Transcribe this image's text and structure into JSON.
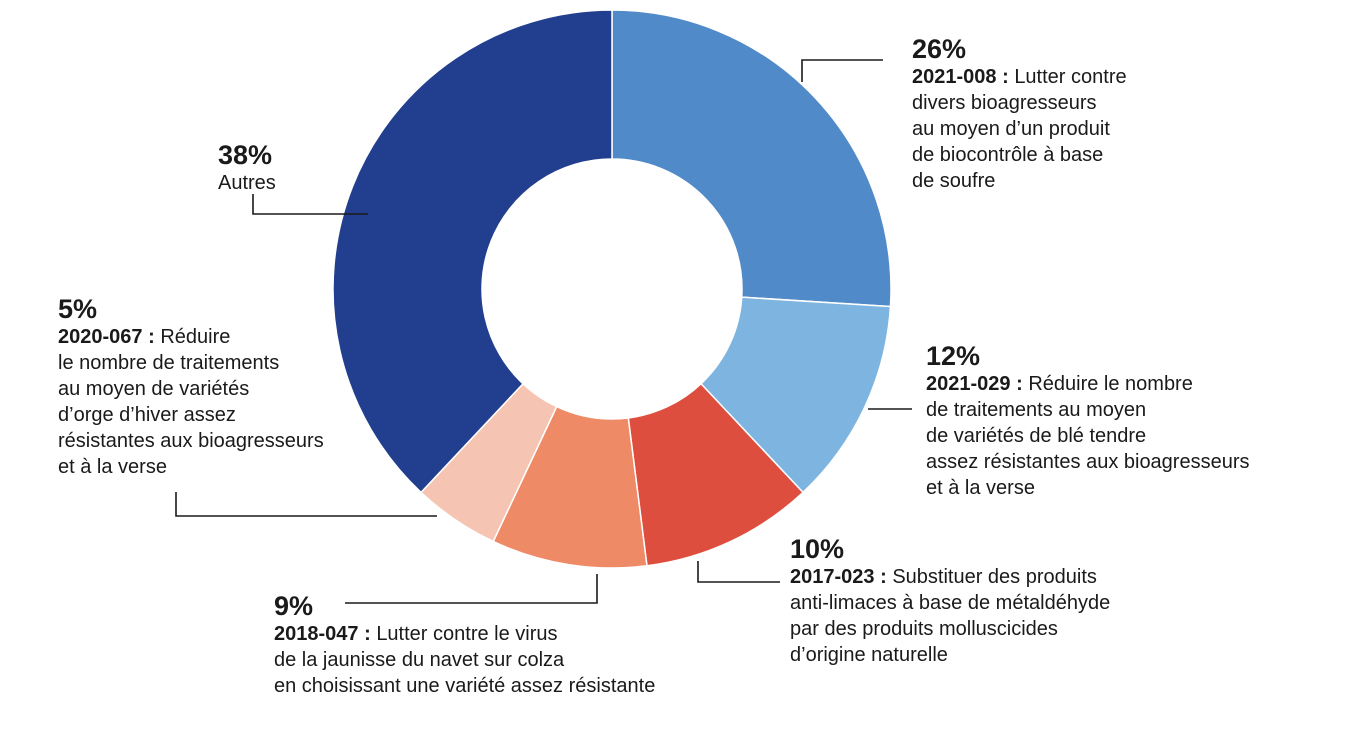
{
  "chart_data": {
    "type": "pie",
    "donut": true,
    "slices": [
      {
        "label": "2021-008",
        "value": 26,
        "color": "#518ac8",
        "pct_text": "26%",
        "code": "2021-008 :",
        "desc_lines": [
          "Lutter contre",
          "divers bioagresseurs",
          "au moyen d’un produit",
          "de biocontrôle à base",
          "de soufre"
        ]
      },
      {
        "label": "2021-029",
        "value": 12,
        "color": "#7db5e0",
        "pct_text": "12%",
        "code": "2021-029 :",
        "desc_lines": [
          "Réduire le nombre",
          "de traitements au moyen",
          "de variétés de blé tendre",
          "assez résistantes aux bioagresseurs",
          "et à la verse"
        ]
      },
      {
        "label": "2017-023",
        "value": 10,
        "color": "#dd4e3e",
        "pct_text": "10%",
        "code": "2017-023 :",
        "desc_lines": [
          "Substituer des produits",
          "anti-limaces à base de métaldéhyde",
          "par des produits molluscicides",
          "d’origine naturelle"
        ]
      },
      {
        "label": "2018-047",
        "value": 9,
        "color": "#ee8a66",
        "pct_text": "9%",
        "code": "2018-047 :",
        "desc_lines": [
          "Lutter contre le virus",
          "de la jaunisse du navet sur colza",
          "en choisissant une variété assez résistante"
        ]
      },
      {
        "label": "2020-067",
        "value": 5,
        "color": "#f6c4b2",
        "pct_text": "5%",
        "code": "2020-067 :",
        "desc_lines": [
          "Réduire",
          "le nombre de traitements",
          "au moyen de variétés",
          "d’orge d’hiver assez",
          "résistantes aux bioagresseurs",
          "et à la verse"
        ]
      },
      {
        "label": "Autres",
        "value": 38,
        "color": "#223e8f",
        "pct_text": "38%",
        "code": "",
        "desc_lines": [
          "Autres"
        ]
      }
    ]
  }
}
